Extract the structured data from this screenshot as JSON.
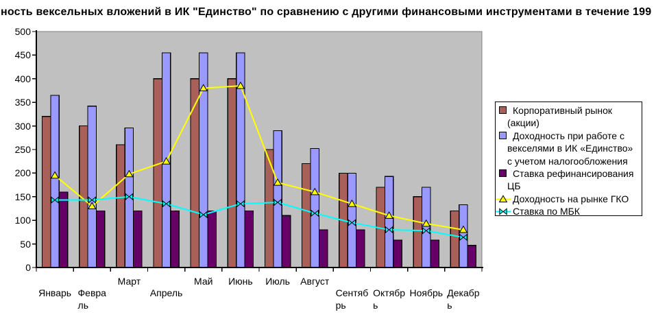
{
  "title": "ность вексельных вложений в ИК \"Единство\" по сравнению с другими финансовыми инструментами в течение 199",
  "colors": {
    "page_bg": "#FFFFFF",
    "plot_bg": "#C0C0C0",
    "plot_border": "#7F7F7F",
    "axis": "#000000",
    "bar_outline": "#000000",
    "corp_bar": "#A86058",
    "veksel_bar": "#9999FF",
    "refin_bar": "#660066",
    "gko_line": "#FFFF00",
    "mbk_line": "#00FFFF"
  },
  "chart_data": {
    "type": "bar",
    "subtype": "combo-bar-line",
    "title": "ность вексельных вложений в ИК \"Единство\" по сравнению с другими финансовыми инструментами в течение 199",
    "xlabel": "",
    "ylabel": "",
    "ylim": [
      0,
      500
    ],
    "ytick_step": 50,
    "grid": false,
    "legend_position": "right",
    "plot_bg": "#C0C0C0",
    "categories": [
      "Январь",
      "Февраль",
      "Март",
      "Апрель",
      "Май",
      "Июнь",
      "Июль",
      "Август",
      "Сентябрь",
      "Октябрь",
      "Ноябрь",
      "Декабрь"
    ],
    "series": [
      {
        "name": "Корпоративный рынок (акции)",
        "type": "bar",
        "color": "#A86058",
        "values": [
          320,
          300,
          260,
          400,
          400,
          400,
          250,
          220,
          200,
          170,
          150,
          120
        ]
      },
      {
        "name": "Доходность при работе с векселями в ИК «Единство» с учетом налогообложения",
        "type": "bar",
        "color": "#9999FF",
        "values": [
          365,
          342,
          296,
          455,
          455,
          455,
          290,
          252,
          200,
          193,
          170,
          133
        ]
      },
      {
        "name": "Ставка рефинансирования ЦБ",
        "type": "bar",
        "color": "#660066",
        "values": [
          160,
          120,
          120,
          120,
          120,
          120,
          110,
          80,
          80,
          58,
          58,
          47
        ]
      },
      {
        "name": "Доходность на рынке ГКО",
        "type": "line",
        "marker": "triangle",
        "color": "#FFFF00",
        "values": [
          195,
          130,
          198,
          225,
          380,
          385,
          180,
          160,
          135,
          110,
          93,
          80
        ]
      },
      {
        "name": "Ставка по МБК",
        "type": "line",
        "marker": "bowtie",
        "color": "#00FFFF",
        "values": [
          143,
          143,
          150,
          135,
          112,
          135,
          138,
          115,
          95,
          80,
          78,
          64
        ]
      }
    ],
    "x_labels_layout": [
      {
        "lines": [
          "Январь"
        ],
        "row": 2
      },
      {
        "lines": [
          "Февра",
          "ль"
        ],
        "row": 2
      },
      {
        "lines": [
          "Март"
        ],
        "row": 1
      },
      {
        "lines": [
          "Апрель"
        ],
        "row": 2
      },
      {
        "lines": [
          "Май"
        ],
        "row": 1
      },
      {
        "lines": [
          "Июнь"
        ],
        "row": 1
      },
      {
        "lines": [
          "Июль"
        ],
        "row": 1
      },
      {
        "lines": [
          "Август"
        ],
        "row": 1
      },
      {
        "lines": [
          "Сентяб",
          "рь"
        ],
        "row": 2
      },
      {
        "lines": [
          "Октябр",
          "ь"
        ],
        "row": 2
      },
      {
        "lines": [
          "Ноябрь"
        ],
        "row": 2
      },
      {
        "lines": [
          "Декабр",
          "ь"
        ],
        "row": 2
      }
    ]
  },
  "legend": {
    "items": [
      {
        "swatch": "square",
        "color": "#A86058",
        "text": "Корпоративный рынок\n(акции)"
      },
      {
        "swatch": "square",
        "color": "#9999FF",
        "text": "Доходность при работе с\nвекселями в ИК «Единство»\nс учетом налогообложения"
      },
      {
        "swatch": "square",
        "color": "#660066",
        "text": "Ставка рефинансирования\nЦБ"
      },
      {
        "swatch": "line-triangle",
        "color": "#FFFF00",
        "text": "Доходность на рынке ГКО"
      },
      {
        "swatch": "line-bowtie",
        "color": "#00FFFF",
        "text": "Ставка по МБК"
      }
    ]
  }
}
